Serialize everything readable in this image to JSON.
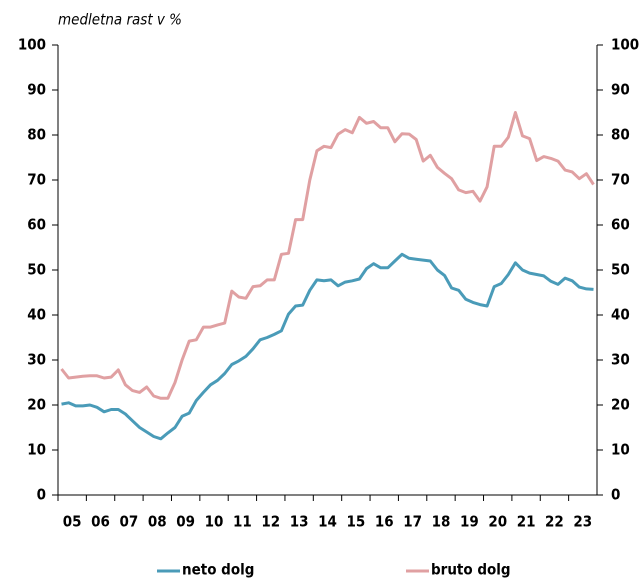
{
  "chart_data": {
    "type": "line",
    "subtitle": "medletna rast v %",
    "categories": [
      null,
      "05",
      null,
      null,
      null,
      "06",
      null,
      null,
      null,
      "07",
      null,
      null,
      null,
      "08",
      null,
      null,
      null,
      "09",
      null,
      null,
      null,
      "10",
      null,
      null,
      null,
      "11",
      null,
      null,
      null,
      "12",
      null,
      null,
      null,
      "13",
      null,
      null,
      null,
      "14",
      null,
      null,
      null,
      "15",
      null,
      null,
      null,
      "16",
      null,
      null,
      null,
      "17",
      null,
      null,
      null,
      "18",
      null,
      null,
      null,
      "19",
      null,
      null,
      null,
      "20",
      null,
      null,
      null,
      "21",
      null,
      null,
      null,
      "22",
      null,
      null,
      null,
      "23",
      null,
      null
    ],
    "series": [
      {
        "name": "neto dolg",
        "color": "#4a9bb8",
        "values": [
          20.2,
          20.5,
          19.8,
          19.8,
          20.0,
          19.5,
          18.5,
          19.0,
          19.0,
          18.0,
          16.5,
          15.0,
          14.0,
          13.0,
          12.5,
          13.8,
          15.0,
          17.5,
          18.2,
          21.0,
          22.8,
          24.5,
          25.5,
          27.0,
          29.0,
          29.8,
          30.8,
          32.5,
          34.5,
          35.0,
          35.7,
          36.5,
          40.2,
          42.0,
          42.2,
          45.5,
          47.8,
          47.6,
          47.8,
          46.5,
          47.3,
          47.6,
          48.0,
          50.3,
          51.4,
          50.5,
          50.5,
          52.0,
          53.5,
          52.6,
          52.4,
          52.2,
          52.0,
          50.0,
          48.8,
          46.0,
          45.5,
          43.5,
          42.8,
          42.3,
          42.0,
          46.3,
          47.0,
          49.0,
          51.6,
          50.0,
          49.3,
          49.0,
          48.7,
          47.5,
          46.8,
          48.2,
          47.6,
          46.2,
          45.8,
          45.7
        ]
      },
      {
        "name": "bruto dolg",
        "color": "#e0a0a2",
        "values": [
          28.0,
          26.0,
          26.2,
          26.4,
          26.5,
          26.5,
          26.0,
          26.2,
          27.8,
          24.5,
          23.2,
          22.8,
          24.0,
          22.0,
          21.5,
          21.5,
          25.0,
          30.0,
          34.2,
          34.5,
          37.3,
          37.3,
          37.8,
          38.2,
          45.3,
          44.0,
          43.7,
          46.3,
          46.5,
          47.8,
          47.8,
          53.5,
          53.7,
          61.2,
          61.2,
          70.0,
          76.5,
          77.5,
          77.2,
          80.2,
          81.2,
          80.5,
          83.9,
          82.6,
          83.0,
          81.6,
          81.6,
          78.5,
          80.3,
          80.2,
          79.0,
          74.2,
          75.5,
          72.8,
          71.5,
          70.3,
          67.8,
          67.2,
          67.5,
          65.3,
          68.5,
          77.5,
          77.5,
          79.5,
          85.0,
          79.8,
          79.2,
          74.3,
          75.2,
          74.8,
          74.2,
          72.2,
          71.8,
          70.3,
          71.4,
          69.0
        ]
      }
    ],
    "ylim": [
      0,
      100
    ],
    "yticks": [
      0,
      10,
      20,
      30,
      40,
      50,
      60,
      70,
      80,
      90,
      100
    ],
    "y2lim": [
      0,
      100
    ],
    "y2ticks": [
      0,
      10,
      20,
      30,
      40,
      50,
      60,
      70,
      80,
      90,
      100
    ],
    "grid": false
  }
}
